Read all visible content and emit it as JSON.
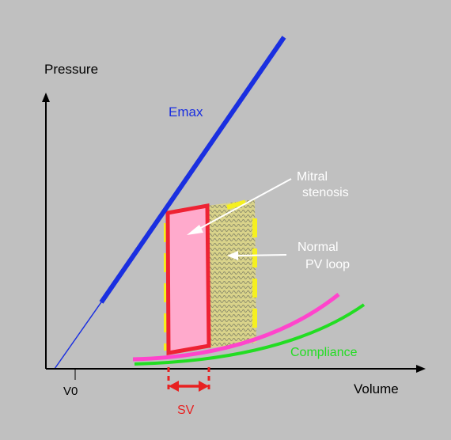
{
  "labels": {
    "pressure": "Pressure",
    "volume": "Volume",
    "v0": "V0",
    "emax": "Emax",
    "mitral_line1": "Mitral",
    "mitral_line2": "stenosis",
    "normal_line1": "Normal",
    "normal_line2": "PV loop",
    "compliance": "Compliance",
    "sv": "SV"
  },
  "colors": {
    "background": "#c0c0c0",
    "axis": "#000000",
    "emax_line": "#1a2fe0",
    "mitral_fill": "#ffaacc",
    "mitral_stroke": "#ee2233",
    "normal_loop_dash": "#f5f020",
    "normal_loop_hatch": "#d8d060",
    "compliance_pink": "#ff44cc",
    "compliance_green": "#22dd22",
    "sv_marker": "#e82020",
    "arrow": "#ffffff",
    "text": "#000000"
  }
}
